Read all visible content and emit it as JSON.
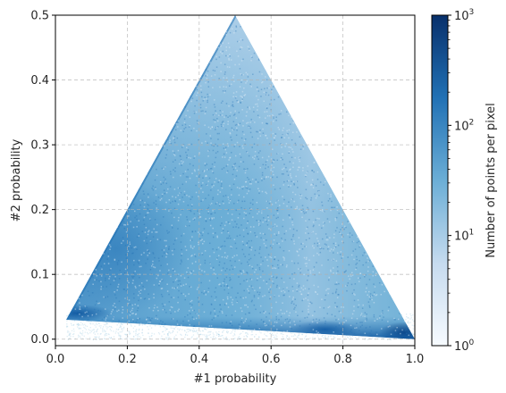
{
  "chart_data": {
    "type": "heatmap",
    "title": "",
    "xlabel": "#1 probability",
    "ylabel": "#2 probability",
    "xlim": [
      0.0,
      1.0
    ],
    "ylim": [
      -0.01,
      0.5
    ],
    "x_ticks": [
      "0.0",
      "0.2",
      "0.4",
      "0.6",
      "0.8",
      "1.0"
    ],
    "y_ticks": [
      "0.0",
      "0.1",
      "0.2",
      "0.3",
      "0.4",
      "0.5"
    ],
    "grid": true,
    "density_region": {
      "shape": "triangle",
      "vertices": [
        [
          0.03,
          0.03
        ],
        [
          0.5,
          0.5
        ],
        [
          1.0,
          0.0
        ]
      ],
      "high_density_areas": [
        {
          "x": 0.17,
          "y": 0.14,
          "level": "medium-high"
        },
        {
          "x": 0.97,
          "y": 0.01,
          "level": "max"
        },
        {
          "x": 0.75,
          "y": 0.015,
          "level": "high"
        },
        {
          "x": 0.06,
          "y": 0.04,
          "level": "high"
        }
      ]
    },
    "colorbar": {
      "label": "Number of points per pixel",
      "scale": "log",
      "range": [
        1,
        1000
      ],
      "tick_labels": [
        {
          "value": 1,
          "base": "10",
          "exp": "0"
        },
        {
          "value": 10,
          "base": "10",
          "exp": "1"
        },
        {
          "value": 100,
          "base": "10",
          "exp": "2"
        },
        {
          "value": 1000,
          "base": "10",
          "exp": "3"
        }
      ],
      "colormap": "Blues",
      "colors": [
        "#f7fbff",
        "#c6dbef",
        "#6baed6",
        "#2171b5",
        "#08306b"
      ]
    }
  }
}
